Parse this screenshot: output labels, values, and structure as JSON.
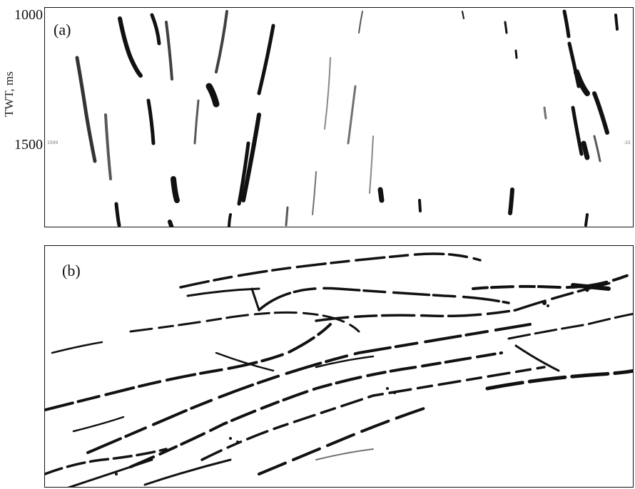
{
  "panel_a": {
    "label": "(a)",
    "y_axis": {
      "title": "TWT, ms",
      "ticks": [
        "1000",
        "1500"
      ],
      "inner_tick_left": "1500",
      "inner_tick_right": "-15"
    }
  },
  "panel_b": {
    "label": "(b)"
  },
  "colors": {
    "ink": "#111111",
    "background": "#ffffff"
  }
}
